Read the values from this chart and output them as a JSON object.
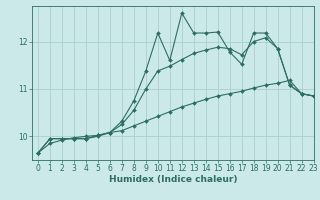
{
  "xlabel": "Humidex (Indice chaleur)",
  "background_color": "#cce9e9",
  "grid_color": "#aacfcf",
  "line_color": "#2d6e63",
  "xlim": [
    -0.5,
    23
  ],
  "ylim": [
    9.5,
    12.75
  ],
  "yticks": [
    10,
    11,
    12
  ],
  "xticks": [
    0,
    1,
    2,
    3,
    4,
    5,
    6,
    7,
    8,
    9,
    10,
    11,
    12,
    13,
    14,
    15,
    16,
    17,
    18,
    19,
    20,
    21,
    22,
    23
  ],
  "line1_x": [
    0,
    1,
    2,
    3,
    4,
    5,
    6,
    7,
    8,
    9,
    10,
    11,
    12,
    13,
    14,
    15,
    16,
    17,
    18,
    19,
    20,
    21,
    22,
    23
  ],
  "line1_y": [
    9.65,
    9.95,
    9.95,
    9.95,
    9.95,
    10.02,
    10.08,
    10.32,
    10.75,
    11.38,
    12.18,
    11.6,
    12.6,
    12.18,
    12.18,
    12.2,
    11.78,
    11.52,
    12.18,
    12.18,
    11.85,
    11.08,
    10.9,
    10.85
  ],
  "line2_x": [
    0,
    1,
    2,
    3,
    4,
    5,
    6,
    7,
    8,
    9,
    10,
    11,
    12,
    13,
    14,
    15,
    16,
    17,
    18,
    19,
    20,
    21,
    22,
    23
  ],
  "line2_y": [
    9.65,
    9.95,
    9.95,
    9.95,
    9.95,
    10.0,
    10.08,
    10.25,
    10.55,
    11.0,
    11.38,
    11.48,
    11.62,
    11.75,
    11.82,
    11.88,
    11.85,
    11.72,
    12.0,
    12.08,
    11.85,
    11.08,
    10.9,
    10.85
  ],
  "line3_x": [
    0,
    1,
    2,
    3,
    4,
    5,
    6,
    7,
    8,
    9,
    10,
    11,
    12,
    13,
    14,
    15,
    16,
    17,
    18,
    19,
    20,
    21,
    22,
    23
  ],
  "line3_y": [
    9.65,
    9.85,
    9.92,
    9.97,
    10.0,
    10.02,
    10.08,
    10.12,
    10.22,
    10.32,
    10.42,
    10.52,
    10.62,
    10.7,
    10.78,
    10.85,
    10.9,
    10.95,
    11.02,
    11.08,
    11.12,
    11.18,
    10.9,
    10.85
  ],
  "marker": "D",
  "markersize": 2.0,
  "linewidth": 0.8,
  "tick_fontsize": 5.5,
  "xlabel_fontsize": 6.5
}
